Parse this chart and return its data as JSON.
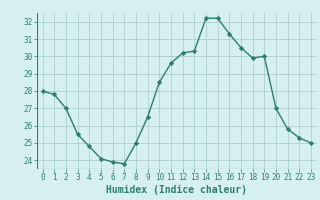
{
  "x": [
    0,
    1,
    2,
    3,
    4,
    5,
    6,
    7,
    8,
    9,
    10,
    11,
    12,
    13,
    14,
    15,
    16,
    17,
    18,
    19,
    20,
    21,
    22,
    23
  ],
  "y": [
    28,
    27.8,
    27,
    25.5,
    24.8,
    24.1,
    23.9,
    23.8,
    25,
    26.5,
    28.5,
    29.6,
    30.2,
    30.3,
    32.2,
    32.2,
    31.3,
    30.5,
    29.9,
    30.0,
    27.0,
    25.8,
    25.3,
    25.0
  ],
  "line_color": "#2e7d6e",
  "marker": "D",
  "marker_size": 2.2,
  "bg_color": "#d6f0ef",
  "grid_color": "#b0cece",
  "xlabel": "Humidex (Indice chaleur)",
  "ylim": [
    23.5,
    32.5
  ],
  "xlim": [
    -0.5,
    23.5
  ],
  "yticks": [
    24,
    25,
    26,
    27,
    28,
    29,
    30,
    31,
    32
  ],
  "xticks": [
    0,
    1,
    2,
    3,
    4,
    5,
    6,
    7,
    8,
    9,
    10,
    11,
    12,
    13,
    14,
    15,
    16,
    17,
    18,
    19,
    20,
    21,
    22,
    23
  ],
  "tick_fontsize": 5.5,
  "xlabel_fontsize": 7.0,
  "line_width": 1.0
}
